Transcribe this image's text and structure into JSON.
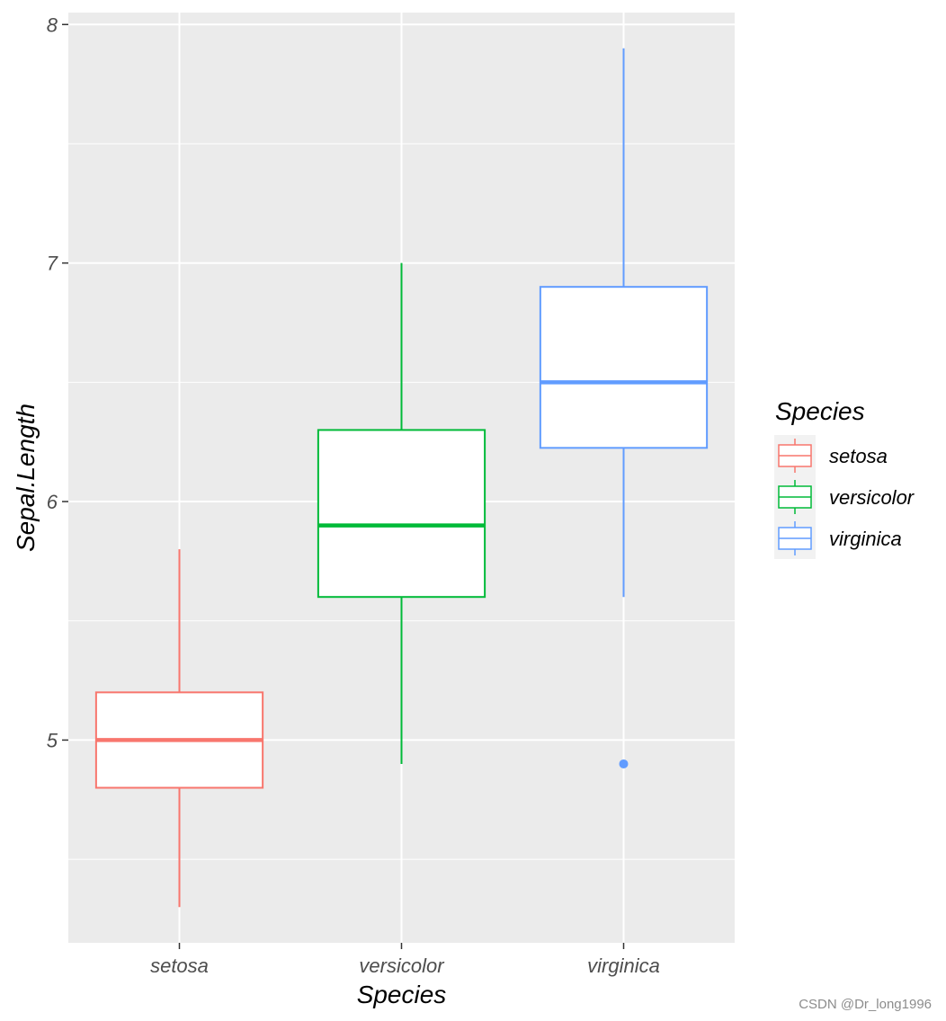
{
  "chart_data": {
    "type": "boxplot",
    "title": "",
    "xlabel": "Species",
    "ylabel": "Sepal.Length",
    "ylim": [
      4.15,
      8.05
    ],
    "y_ticks": [
      5,
      6,
      7,
      8
    ],
    "y_tick_labels": [
      "5",
      "6",
      "7",
      "8"
    ],
    "categories": [
      "setosa",
      "versicolor",
      "virginica"
    ],
    "series": [
      {
        "name": "setosa",
        "color": "#F8766D",
        "whisker_low": 4.3,
        "q1": 4.8,
        "median": 5.0,
        "q3": 5.2,
        "whisker_high": 5.8,
        "outliers": []
      },
      {
        "name": "versicolor",
        "color": "#00BA38",
        "whisker_low": 4.9,
        "q1": 5.6,
        "median": 5.9,
        "q3": 6.3,
        "whisker_high": 7.0,
        "outliers": []
      },
      {
        "name": "virginica",
        "color": "#619CFF",
        "whisker_low": 5.6,
        "q1": 6.225,
        "median": 6.5,
        "q3": 6.9,
        "whisker_high": 7.9,
        "outliers": [
          4.9
        ]
      }
    ],
    "legend": {
      "title": "Species",
      "position": "right"
    },
    "grid": true,
    "panel_background": "#EBEBEB"
  },
  "watermark": "CSDN @Dr_long1996"
}
